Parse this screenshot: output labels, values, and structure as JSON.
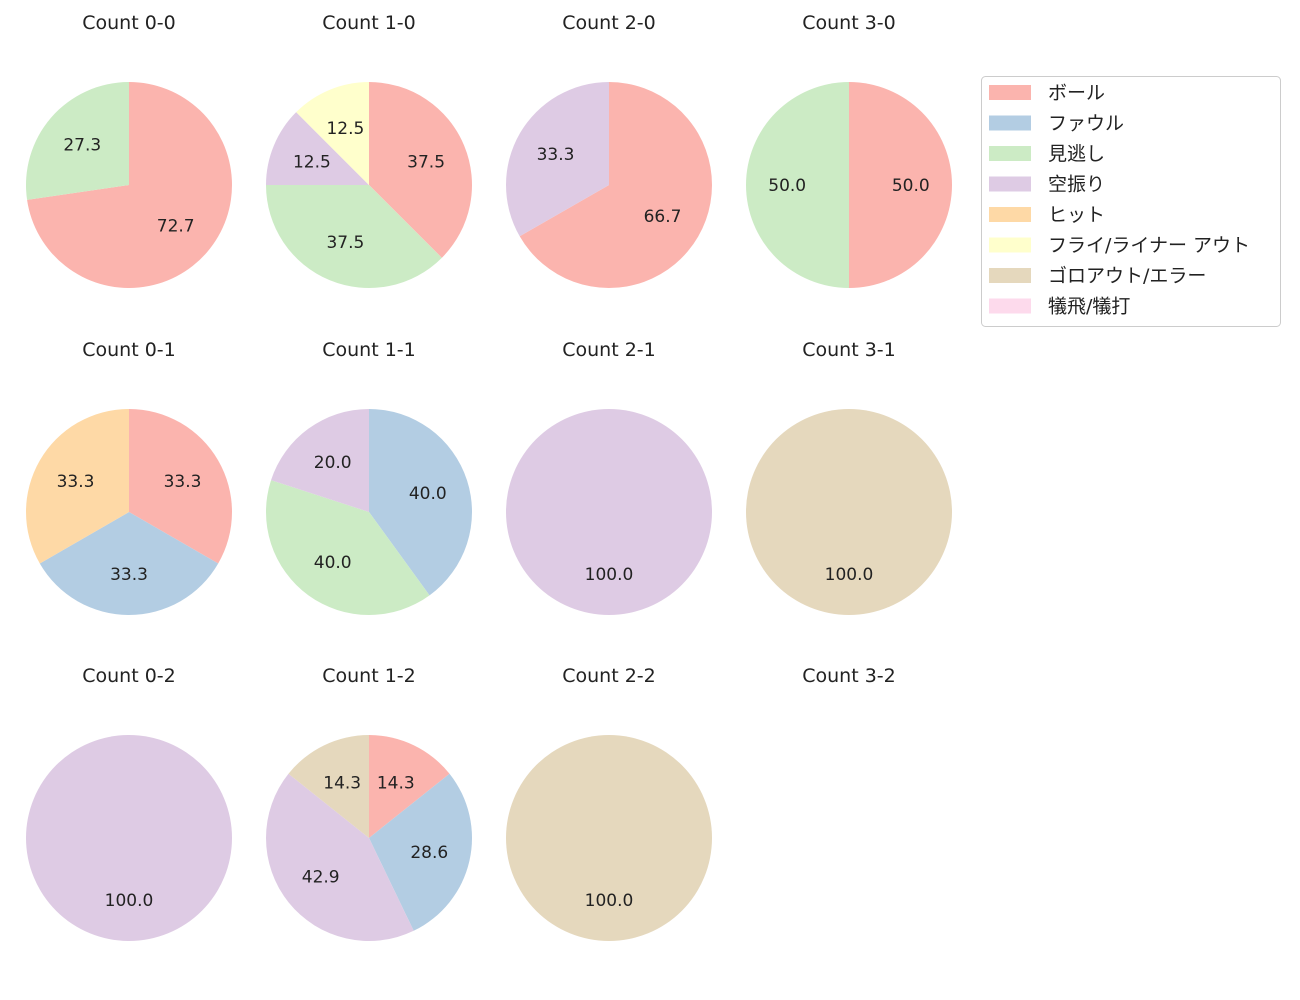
{
  "chart_data": {
    "type": "pie",
    "legend": {
      "placement": "top-right",
      "entries": [
        {
          "label": "ボール",
          "color": "#fbb4ae"
        },
        {
          "label": "ファウル",
          "color": "#b3cde3"
        },
        {
          "label": "見逃し",
          "color": "#ccebc5"
        },
        {
          "label": "空振り",
          "color": "#decbe4"
        },
        {
          "label": "ヒット",
          "color": "#fed9a6"
        },
        {
          "label": "フライ/ライナー アウト",
          "color": "#ffffcc"
        },
        {
          "label": "ゴロアウト/エラー",
          "color": "#e5d8bd"
        },
        {
          "label": "犠飛/犠打",
          "color": "#fddaec"
        }
      ]
    },
    "charts": [
      {
        "title": "Count 0-0",
        "slices": [
          {
            "category": 0,
            "value": 72.7,
            "label": "72.7"
          },
          {
            "category": 2,
            "value": 27.3,
            "label": "27.3"
          }
        ]
      },
      {
        "title": "Count 1-0",
        "slices": [
          {
            "category": 0,
            "value": 37.5,
            "label": "37.5"
          },
          {
            "category": 2,
            "value": 37.5,
            "label": "37.5"
          },
          {
            "category": 3,
            "value": 12.5,
            "label": "12.5"
          },
          {
            "category": 5,
            "value": 12.5,
            "label": "12.5"
          }
        ]
      },
      {
        "title": "Count 2-0",
        "slices": [
          {
            "category": 0,
            "value": 66.7,
            "label": "66.7"
          },
          {
            "category": 3,
            "value": 33.3,
            "label": "33.3"
          }
        ]
      },
      {
        "title": "Count 3-0",
        "slices": [
          {
            "category": 0,
            "value": 50.0,
            "label": "50.0"
          },
          {
            "category": 2,
            "value": 50.0,
            "label": "50.0"
          }
        ]
      },
      {
        "title": "Count 0-1",
        "slices": [
          {
            "category": 0,
            "value": 33.3,
            "label": "33.3"
          },
          {
            "category": 1,
            "value": 33.3,
            "label": "33.3"
          },
          {
            "category": 4,
            "value": 33.3,
            "label": "33.3"
          }
        ]
      },
      {
        "title": "Count 1-1",
        "slices": [
          {
            "category": 1,
            "value": 40.0,
            "label": "40.0"
          },
          {
            "category": 2,
            "value": 40.0,
            "label": "40.0"
          },
          {
            "category": 3,
            "value": 20.0,
            "label": "20.0"
          }
        ]
      },
      {
        "title": "Count 2-1",
        "slices": [
          {
            "category": 3,
            "value": 100.0,
            "label": "100.0"
          }
        ]
      },
      {
        "title": "Count 3-1",
        "slices": [
          {
            "category": 6,
            "value": 100.0,
            "label": "100.0"
          }
        ]
      },
      {
        "title": "Count 0-2",
        "slices": [
          {
            "category": 3,
            "value": 100.0,
            "label": "100.0"
          }
        ]
      },
      {
        "title": "Count 1-2",
        "slices": [
          {
            "category": 0,
            "value": 14.3,
            "label": "14.3"
          },
          {
            "category": 1,
            "value": 28.6,
            "label": "28.6"
          },
          {
            "category": 3,
            "value": 42.9,
            "label": "42.9"
          },
          {
            "category": 6,
            "value": 14.3,
            "label": "14.3"
          }
        ]
      },
      {
        "title": "Count 2-2",
        "slices": [
          {
            "category": 6,
            "value": 100.0,
            "label": "100.0"
          }
        ]
      },
      {
        "title": "Count 3-2",
        "slices": []
      }
    ]
  }
}
